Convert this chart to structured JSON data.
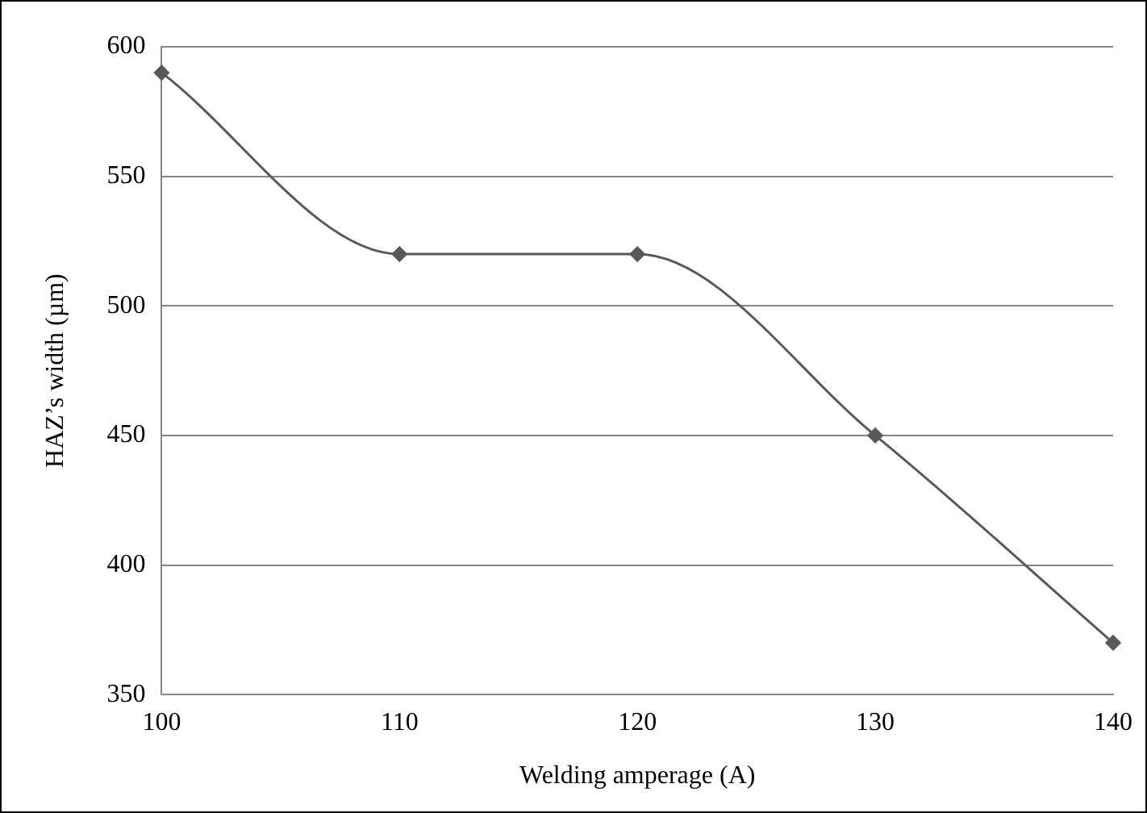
{
  "chart_data": {
    "type": "line",
    "xlabel": "Welding amperage (A)",
    "ylabel": "HAZ’s width (µm)",
    "x": [
      100,
      110,
      120,
      130,
      140
    ],
    "series": [
      {
        "color": "#595959",
        "values": [
          590,
          520,
          520,
          450,
          370
        ]
      }
    ],
    "xlim": [
      100,
      140
    ],
    "xticks": [
      100,
      110,
      120,
      130,
      140
    ],
    "ylim": [
      350,
      600
    ],
    "yticks": [
      350,
      400,
      450,
      500,
      550,
      600
    ],
    "grid": "y",
    "legend": false,
    "marker": "diamond",
    "line_style": "solid"
  }
}
